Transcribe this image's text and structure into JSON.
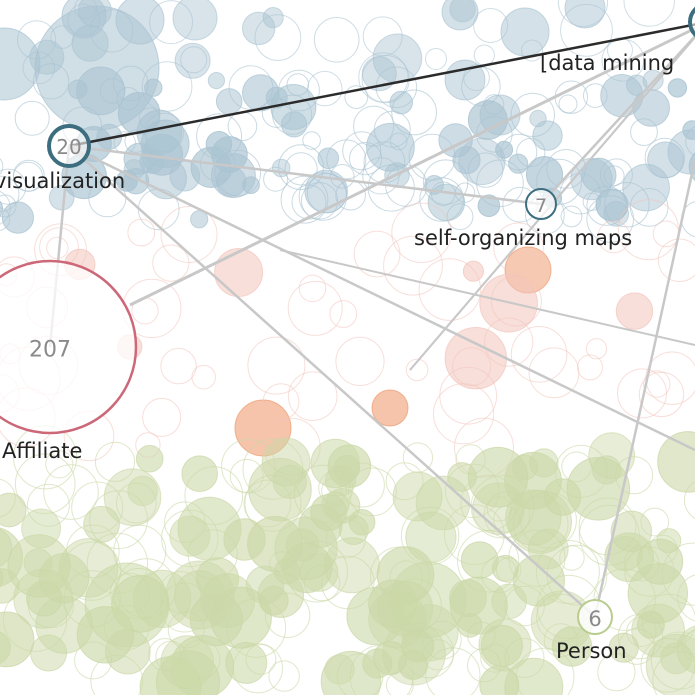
{
  "graph": {
    "colors": {
      "topic": "#3d6e80",
      "topic_fill": "#a9c3d1",
      "affiliate": "#cc6878",
      "affiliate_fill": "#f2c4bc",
      "affiliate_dark_fill": "#ee9d72",
      "person": "#b8cc8e",
      "person_fill": "#cbd8a8",
      "edge": "#c8c8c8",
      "edge_dark": "#2b2b2b"
    },
    "nodes": [
      {
        "id": "visualization",
        "label": "visualization",
        "count": "20",
        "group": "topic"
      },
      {
        "id": "data-mining",
        "label": "[data mining",
        "count": "",
        "group": "topic"
      },
      {
        "id": "self-organizing-maps",
        "label": "self-organizing maps",
        "count": "7",
        "group": "topic"
      },
      {
        "id": "affiliate",
        "label": "Affiliate",
        "count": "207",
        "group": "affiliate"
      },
      {
        "id": "person",
        "label": "Person",
        "count": "6",
        "group": "person"
      }
    ]
  }
}
